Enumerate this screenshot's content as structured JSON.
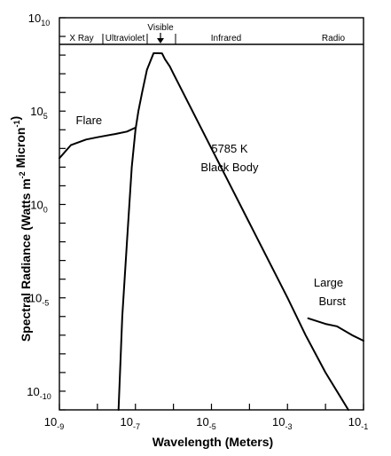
{
  "chart_data": {
    "type": "line",
    "title": "",
    "xlabel": "Wavelength (Meters)",
    "ylabel": "Spectral Radiance (Watts m-2 Micron-1)",
    "x_scale": "log",
    "y_scale": "log",
    "xlim": [
      "1e-9",
      "1e-1"
    ],
    "ylim": [
      "1e-11",
      "1e10"
    ],
    "x_ticks": [
      {
        "base": "10",
        "exp": "-9"
      },
      {
        "base": "10",
        "exp": "-7"
      },
      {
        "base": "10",
        "exp": "-5"
      },
      {
        "base": "10",
        "exp": "-3"
      },
      {
        "base": "10",
        "exp": "-1"
      }
    ],
    "y_ticks": [
      {
        "base": "10",
        "exp": "10"
      },
      {
        "base": "10",
        "exp": "5"
      },
      {
        "base": "10",
        "exp": "0"
      },
      {
        "base": "10",
        "exp": "-5"
      },
      {
        "base": "10",
        "exp": "-10"
      }
    ],
    "spectral_bands": [
      "X Ray",
      "Ultraviolet",
      "Visible",
      "Infrared",
      "Radio"
    ],
    "series": [
      {
        "name": "5785 K Black Body",
        "points": [
          [
            3.6e-08,
            1e-11
          ],
          [
            4.5e-08,
            1e-06
          ],
          [
            6e-08,
            0.01
          ],
          [
            8e-08,
            100.0
          ],
          [
            1e-07,
            10000.0
          ],
          [
            1.2e-07,
            100000.0
          ],
          [
            1.5e-07,
            1000000.0
          ],
          [
            2e-07,
            16000000.0
          ],
          [
            3e-07,
            200000000.0
          ],
          [
            4e-07,
            130000000.0
          ],
          [
            5e-07,
            125000000.0
          ],
          [
            6e-07,
            60000000.0
          ],
          [
            8e-07,
            25000000.0
          ],
          [
            1e-06,
            10000000.0
          ],
          [
            1e-05,
            1000.0
          ],
          [
            0.0001,
            0.1
          ],
          [
            0.001,
            1e-05
          ],
          [
            0.003,
            1e-07
          ],
          [
            0.01,
            1e-09
          ],
          [
            0.04,
            1e-11
          ]
        ]
      },
      {
        "name": "Flare",
        "points": [
          [
            1e-09,
            300.0
          ],
          [
            2e-09,
            1500.0
          ],
          [
            5e-09,
            3000.0
          ],
          [
            1e-08,
            4000.0
          ],
          [
            3e-08,
            6000.0
          ],
          [
            6e-08,
            8000.0
          ],
          [
            1e-07,
            13000.0
          ]
        ]
      },
      {
        "name": "Large Burst",
        "points": [
          [
            0.0035,
            8e-07
          ],
          [
            0.01,
            4e-07
          ],
          [
            0.02,
            3e-07
          ],
          [
            0.05,
            1e-07
          ],
          [
            0.1,
            5e-08
          ]
        ]
      }
    ],
    "annotations": [
      {
        "text": "Flare",
        "x": 6e-09,
        "y": 20000.0
      },
      {
        "text": "5785 K",
        "x": 3e-05,
        "y": 600.0
      },
      {
        "text": "Black Body",
        "x": 3e-05,
        "y": 60.0
      },
      {
        "text": "Large",
        "x": 0.012,
        "y": 4e-05
      },
      {
        "text": "Burst",
        "x": 0.015,
        "y": 4e-06
      }
    ],
    "grid": false,
    "legend": "none"
  }
}
